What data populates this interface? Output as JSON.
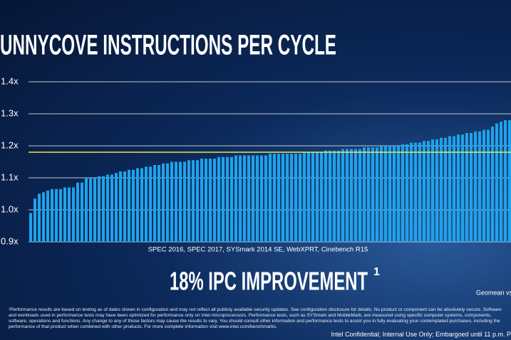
{
  "chart_data": {
    "type": "bar",
    "title": "UNNYCOVE INSTRUCTIONS PER CYCLE",
    "x_label": "SPEC 2016, SPEC 2017, SYSmark 2014 SE, WebXPRT, Cinebench R15",
    "headline": "18% IPC IMPROVEMENT",
    "headline_note": "1",
    "side_note": "Geomean vs",
    "footnote": "¹Performance results are based on testing as of dates shown in configuration and may not reflect all publicly available security updates. See configuration disclosure for details. No product or component can be absolutely secure. Software and workloads used in performance tests may have been optimized for performance only on Intel microprocessors. Performance tests, such as SYSmark and MobileMark, are measured using specific computer systems, components, software, operations and functions. Any change to any of those factors may cause the results to vary. You should consult other information and performance tests to assist you in fully evaluating your contemplated purchases, including the performance of that product when combined with other products. For more complete information visit www.intel.com/benchmarks.",
    "confidential": "Intel Confidential; Internal Use Only; Embargoed until 11 p.m. P",
    "color": "#1ea3ea",
    "geomean": 1.18,
    "geomean_color": "#e8e84a",
    "values": [
      0.99,
      1.035,
      1.05,
      1.055,
      1.06,
      1.065,
      1.065,
      1.065,
      1.07,
      1.07,
      1.07,
      1.085,
      1.085,
      1.1,
      1.1,
      1.1,
      1.105,
      1.105,
      1.11,
      1.11,
      1.115,
      1.12,
      1.12,
      1.125,
      1.125,
      1.13,
      1.13,
      1.135,
      1.135,
      1.14,
      1.14,
      1.145,
      1.145,
      1.15,
      1.15,
      1.15,
      1.15,
      1.155,
      1.155,
      1.155,
      1.16,
      1.16,
      1.16,
      1.16,
      1.165,
      1.165,
      1.165,
      1.165,
      1.17,
      1.17,
      1.17,
      1.17,
      1.17,
      1.17,
      1.17,
      1.17,
      1.175,
      1.175,
      1.175,
      1.175,
      1.175,
      1.175,
      1.175,
      1.175,
      1.18,
      1.18,
      1.18,
      1.18,
      1.18,
      1.185,
      1.185,
      1.185,
      1.185,
      1.19,
      1.19,
      1.19,
      1.19,
      1.19,
      1.195,
      1.195,
      1.195,
      1.195,
      1.2,
      1.2,
      1.2,
      1.2,
      1.2,
      1.205,
      1.205,
      1.21,
      1.21,
      1.21,
      1.215,
      1.215,
      1.22,
      1.22,
      1.225,
      1.225,
      1.23,
      1.23,
      1.235,
      1.235,
      1.24,
      1.24,
      1.245,
      1.245,
      1.25,
      1.25,
      1.26,
      1.27,
      1.275,
      1.28,
      1.28
    ],
    "ylim": [
      0.9,
      1.4
    ],
    "yticks": [
      {
        "value": 0.9,
        "label": "0.9x"
      },
      {
        "value": 1.0,
        "label": "1.0x"
      },
      {
        "value": 1.1,
        "label": "1.1x"
      },
      {
        "value": 1.2,
        "label": "1.2x"
      },
      {
        "value": 1.3,
        "label": "1.3x"
      },
      {
        "value": 1.4,
        "label": "1.4x"
      }
    ],
    "grid": true
  }
}
